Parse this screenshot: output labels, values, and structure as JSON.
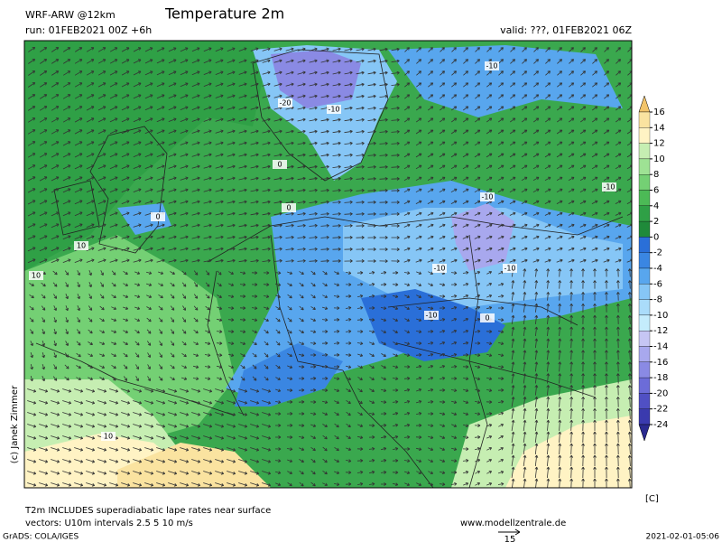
{
  "header": {
    "model": "WRF-ARW @12km",
    "title": "Temperature 2m",
    "run": "run: 01FEB2021 00Z +6h",
    "valid": "valid: ???, 01FEB2021 06Z"
  },
  "colorbar": {
    "ticks": [
      16,
      14,
      12,
      10,
      8,
      6,
      4,
      2,
      0,
      -2,
      -4,
      -6,
      -8,
      -10,
      -12,
      -14,
      -16,
      -18,
      -20,
      -22,
      -24
    ],
    "over_color": "#f2c46a",
    "interval_colors": [
      "#fae3a0",
      "#fff3c4",
      "#c6eeb2",
      "#9ee294",
      "#74d074",
      "#4cba56",
      "#2fa046",
      "#1f8a3a",
      "#2a6fd8",
      "#3a86e2",
      "#58a6ee",
      "#86c6f6",
      "#aadcfa",
      "#c4ecfc",
      "#c6c6f4",
      "#a8a8ee",
      "#8a8ae4",
      "#6c6cd8",
      "#5050c4",
      "#3a3aae"
    ],
    "under_color": "#2a2a90",
    "unit": "[C]"
  },
  "map_labels": [
    "-20",
    "-10",
    "-10",
    "0",
    "0",
    "0",
    "-10",
    "-10",
    "-10",
    "-10",
    "0",
    "10",
    "10",
    "10",
    "-10"
  ],
  "footer": {
    "note": "T2m INCLUDES superadiabatic lape rates near surface",
    "vectors": "vectors: U10m intervals 2.5 5 10 m/s",
    "website": "www.modellzentrale.de",
    "copyright": "(c) Janek Zimmer",
    "software": "GrADS: COLA/IGES",
    "timestamp": "2021-02-01-05:06",
    "vector_scale": "15"
  }
}
